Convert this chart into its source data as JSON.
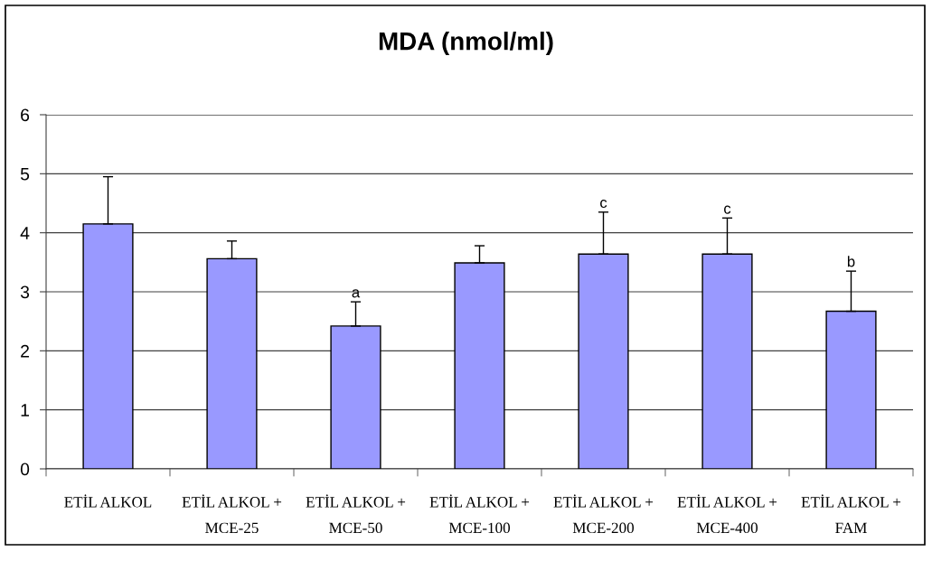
{
  "chart_data": {
    "type": "bar",
    "title": "MDA (nmol/ml)",
    "categories": [
      "ETİL ALKOL",
      "ETİL ALKOL +\nMCE-25",
      "ETİL ALKOL +\nMCE-50",
      "ETİL ALKOL +\nMCE-100",
      "ETİL ALKOL +\nMCE-200",
      "ETİL ALKOL +\nMCE-400",
      "ETİL ALKOL +\nFAM"
    ],
    "values": [
      4.15,
      3.56,
      2.42,
      3.49,
      3.64,
      3.64,
      2.67
    ],
    "errors": [
      [
        4.15,
        4.95
      ],
      [
        3.56,
        3.86
      ],
      [
        2.42,
        2.83
      ],
      [
        3.49,
        3.78
      ],
      [
        3.64,
        4.35
      ],
      [
        3.64,
        4.25
      ],
      [
        2.67,
        3.35
      ]
    ],
    "value_labels": [
      null,
      null,
      "a",
      null,
      "c",
      "c",
      "b"
    ],
    "color": "#9999ff",
    "ylim": [
      0,
      6
    ],
    "yticks": [
      0,
      1,
      2,
      3,
      4,
      5,
      6
    ],
    "grid": "y",
    "legend": false
  }
}
